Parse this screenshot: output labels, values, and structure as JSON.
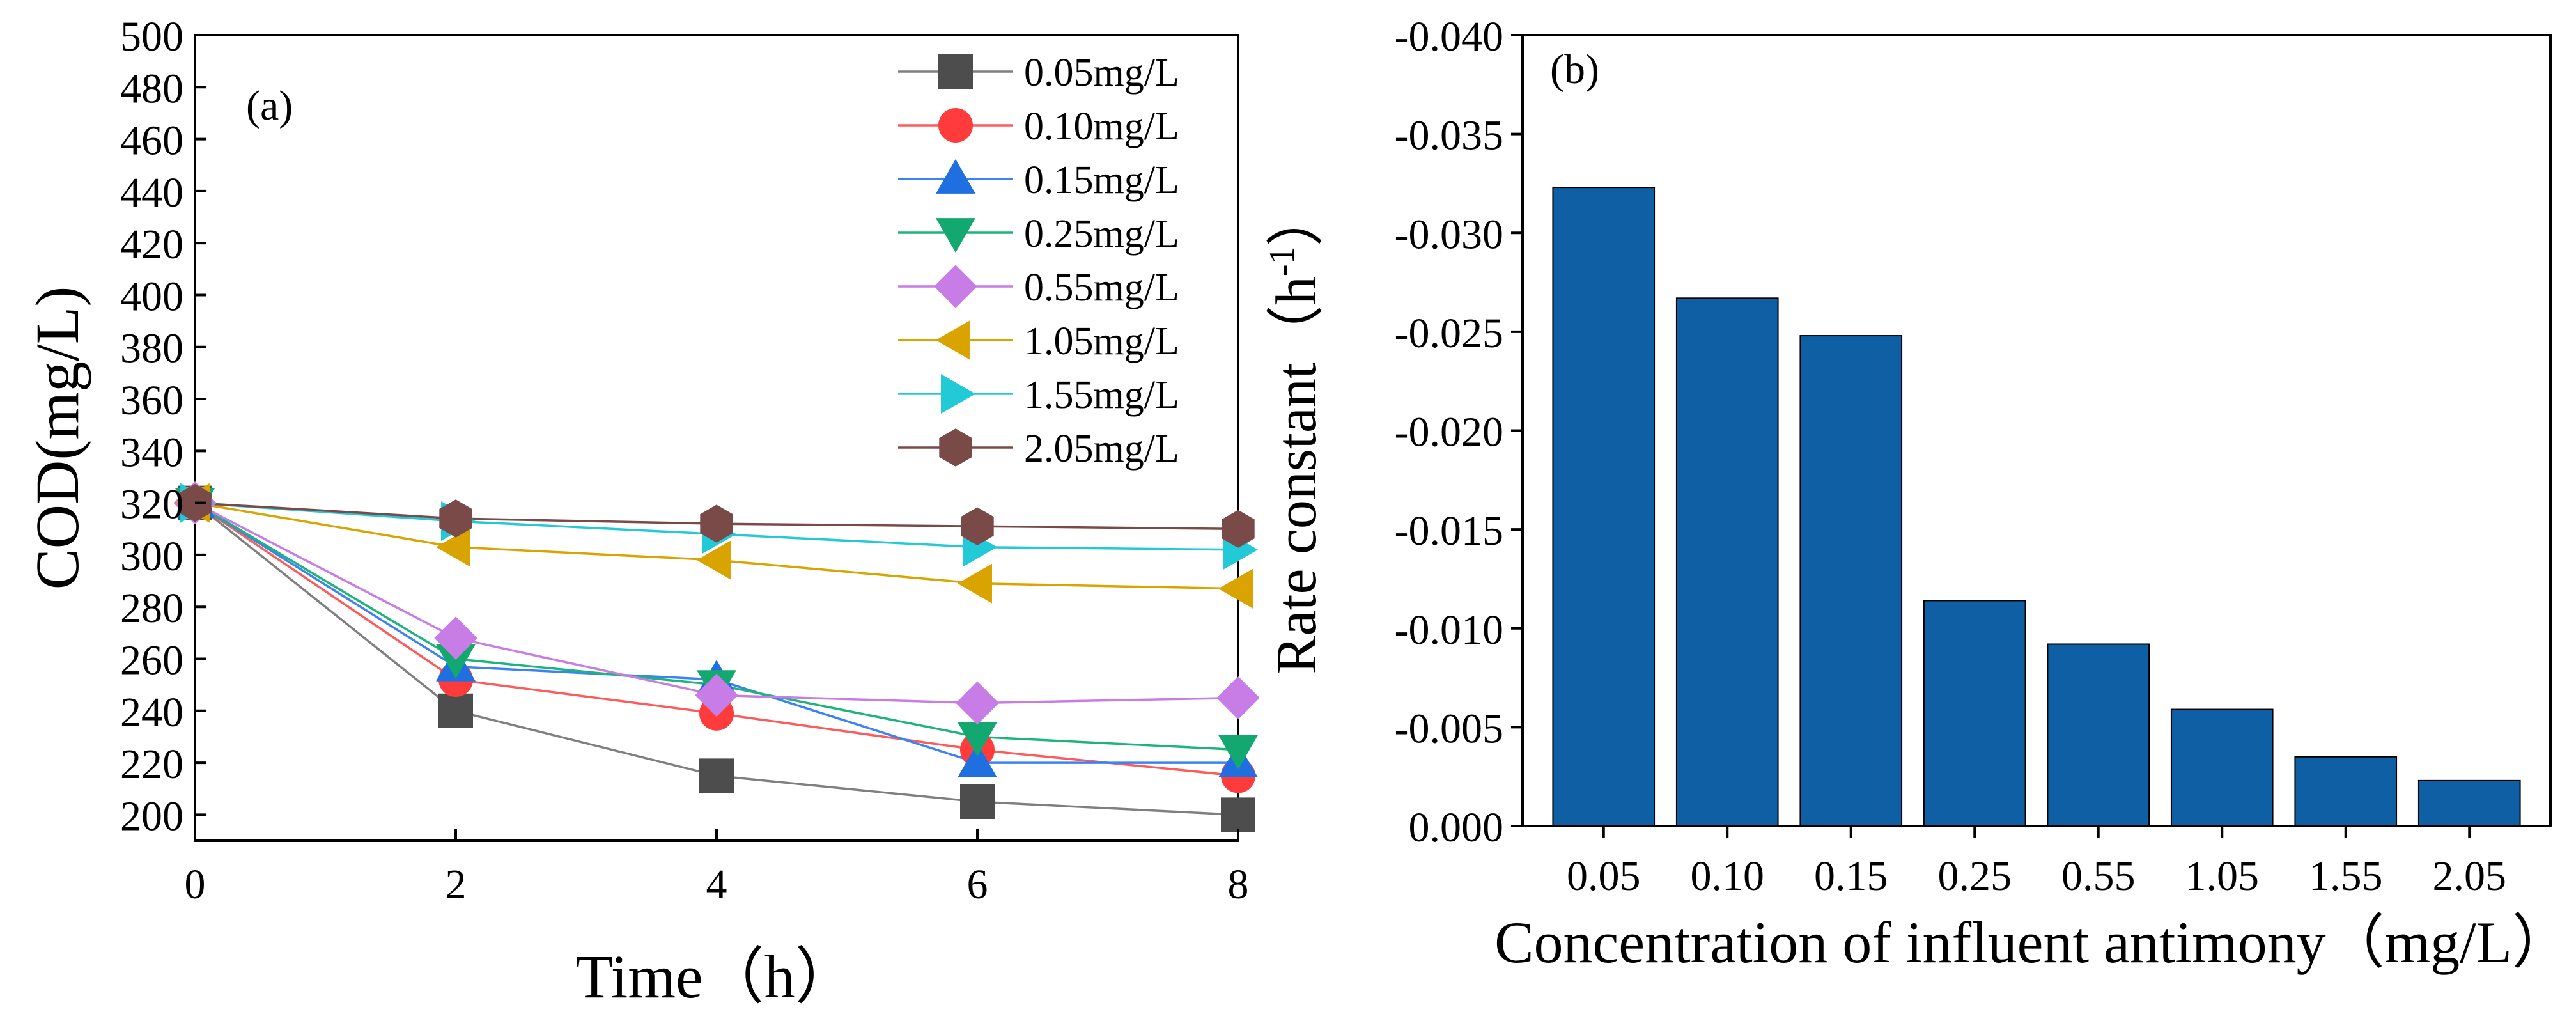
{
  "chart_data": [
    {
      "type": "line",
      "panel_label": "(a)",
      "xlabel": "Time（h）",
      "ylabel": "COD(mg/L)",
      "xlim": [
        0,
        8
      ],
      "ylim": [
        190,
        500
      ],
      "x": [
        0,
        2,
        4,
        6,
        8
      ],
      "x_ticks": [
        "0",
        "2",
        "4",
        "6",
        "8"
      ],
      "y_ticks": [
        "200",
        "220",
        "240",
        "260",
        "280",
        "300",
        "320",
        "340",
        "360",
        "380",
        "400",
        "420",
        "440",
        "460",
        "480",
        "500"
      ],
      "legend_position": "top-right",
      "series": [
        {
          "name": "0.05mg/L",
          "marker": "square",
          "color": "#4d4d4d",
          "line_color": "#7f7f7f",
          "values": [
            320,
            240,
            215,
            205,
            200
          ]
        },
        {
          "name": "0.10mg/L",
          "marker": "circle",
          "color": "#ff3b3b",
          "line_color": "#ff5a5a",
          "values": [
            320,
            252,
            239,
            225,
            215
          ]
        },
        {
          "name": "0.15mg/L",
          "marker": "triangle-up",
          "color": "#1f6fe0",
          "line_color": "#3b82f6",
          "values": [
            320,
            257,
            252,
            220,
            220
          ]
        },
        {
          "name": "0.25mg/L",
          "marker": "triangle-down",
          "color": "#13a870",
          "line_color": "#1db47c",
          "values": [
            320,
            260,
            250,
            230,
            225
          ]
        },
        {
          "name": "0.55mg/L",
          "marker": "diamond",
          "color": "#c77ce6",
          "line_color": "#c77ce6",
          "values": [
            320,
            268,
            246,
            243,
            245
          ]
        },
        {
          "name": "1.05mg/L",
          "marker": "triangle-left",
          "color": "#d9a300",
          "line_color": "#d9a300",
          "values": [
            320,
            303,
            298,
            289,
            287
          ]
        },
        {
          "name": "1.55mg/L",
          "marker": "triangle-right",
          "color": "#22c9d6",
          "line_color": "#22c9d6",
          "values": [
            320,
            313,
            308,
            303,
            302
          ]
        },
        {
          "name": "2.05mg/L",
          "marker": "hexagon",
          "color": "#7a4a48",
          "line_color": "#7a4a48",
          "values": [
            320,
            314,
            312,
            311,
            310
          ]
        }
      ]
    },
    {
      "type": "bar",
      "panel_label": "(b)",
      "xlabel": "Concentration of influent antimony（mg/L）",
      "ylabel_main": "Rate constant（h",
      "ylabel_sup": "-1",
      "ylabel_close": "）",
      "categories": [
        "0.05",
        "0.10",
        "0.15",
        "0.25",
        "0.55",
        "1.05",
        "1.55",
        "2.05"
      ],
      "values": [
        -0.0323,
        -0.0267,
        -0.0248,
        -0.0114,
        -0.0092,
        -0.0059,
        -0.0035,
        -0.0023
      ],
      "ylim": [
        0.0,
        -0.04
      ],
      "y_ticks": [
        "0.000",
        "-0.005",
        "-0.010",
        "-0.015",
        "-0.020",
        "-0.025",
        "-0.030",
        "-0.035",
        "-0.040"
      ],
      "bar_color": "#0e5fa3"
    }
  ]
}
